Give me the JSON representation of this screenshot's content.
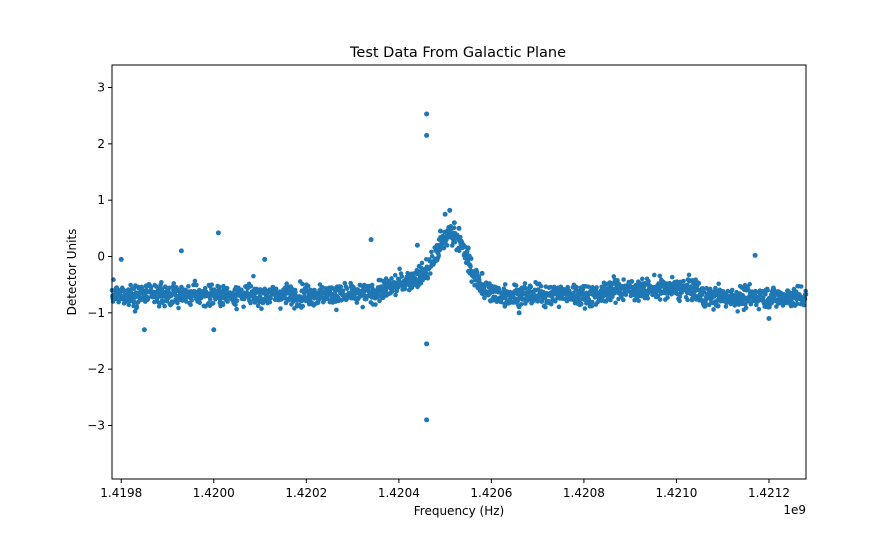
{
  "chart_data": {
    "type": "scatter",
    "title": "Test Data From Galactic Plane",
    "xlabel": "Frequency (Hz)",
    "ylabel": "Detector Units",
    "x_offset_label": "1e9",
    "xlim": [
      1.41978,
      1.42128
    ],
    "ylim": [
      -3.95,
      3.4
    ],
    "x_ticks": [
      1.4198,
      1.42,
      1.4202,
      1.4204,
      1.4206,
      1.4208,
      1.421,
      1.4212
    ],
    "x_tick_labels": [
      "1.4198",
      "1.4200",
      "1.4202",
      "1.4204",
      "1.4206",
      "1.4208",
      "1.4210",
      "1.4212"
    ],
    "y_ticks": [
      3,
      2,
      1,
      0,
      -1,
      -2,
      -3
    ],
    "y_tick_labels": [
      "3",
      "2",
      "1",
      "0",
      "−1",
      "−2",
      "−3"
    ],
    "grid": false,
    "legend": "none",
    "marker_color": "#1f77b4",
    "series": [
      {
        "x": [
          1.4198,
          1.41985,
          1.41993,
          1.42,
          1.42001,
          1.42011,
          1.42034,
          1.42044,
          1.42046,
          1.42046,
          1.42046,
          1.42046,
          1.42049,
          1.4205,
          1.42051,
          1.42052,
          1.42053,
          1.42055,
          1.42058,
          1.42061,
          1.42066,
          1.42074,
          1.42091,
          1.42101,
          1.42117,
          1.4212
        ],
        "y": [
          -0.05,
          -1.3,
          0.1,
          -1.3,
          0.42,
          -0.05,
          0.3,
          0.2,
          2.53,
          2.15,
          -1.55,
          -2.9,
          0.45,
          0.75,
          0.82,
          0.6,
          0.5,
          0.15,
          -0.3,
          -0.55,
          -1.0,
          -0.6,
          -0.55,
          -0.6,
          0.02,
          -1.1
        ]
      }
    ]
  }
}
